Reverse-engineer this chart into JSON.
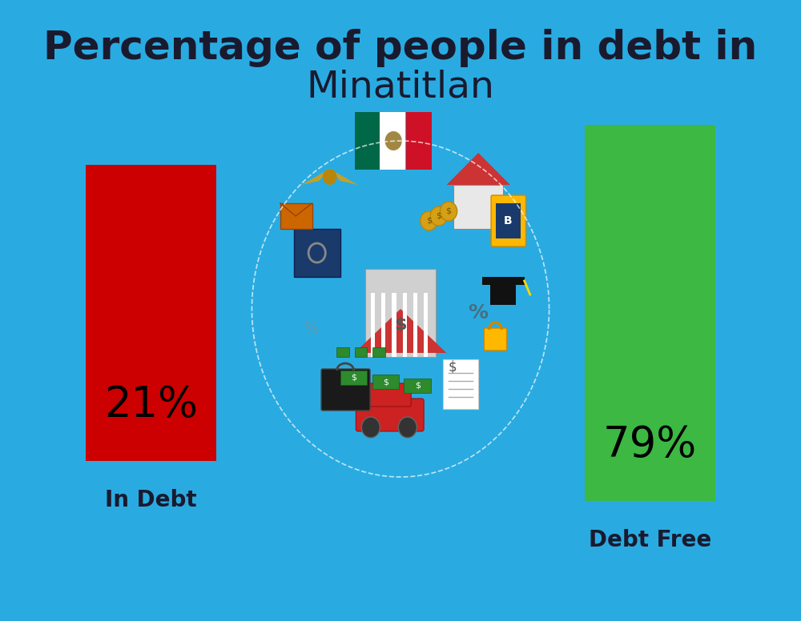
{
  "title_line1": "Percentage of people in debt in",
  "title_line2": "Minatitlan",
  "background_color": "#29ABE2",
  "title_color": "#1a1a2e",
  "title_fontsize": 36,
  "subtitle_fontsize": 34,
  "bar1_label": "21%",
  "bar1_color": "#CC0000",
  "bar1_text": "In Debt",
  "bar2_label": "79%",
  "bar2_color": "#3CB843",
  "bar2_text": "Debt Free",
  "label_color": "#1a1a2e",
  "pct_color": "#000000",
  "pct_fontsize": 38,
  "label_fontsize": 20,
  "flag_green": "#006847",
  "flag_white": "#FFFFFF",
  "flag_red": "#CE1126"
}
